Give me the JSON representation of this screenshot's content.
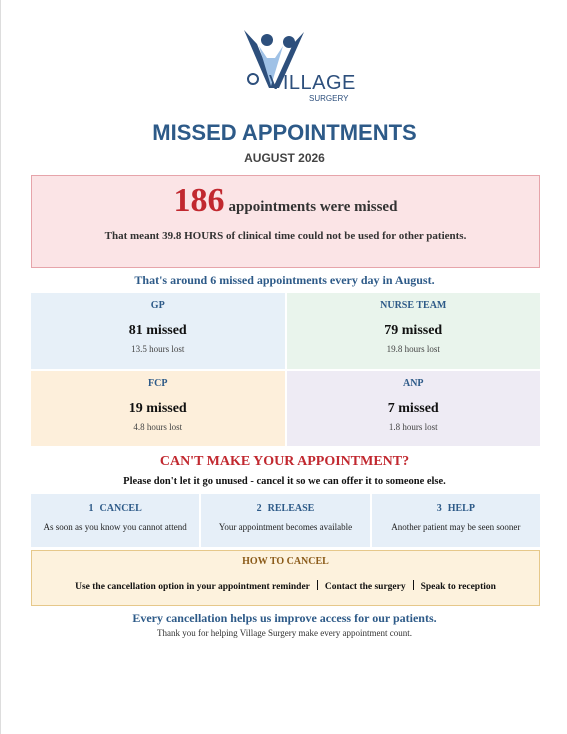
{
  "logo": {
    "name": "VILLAGE",
    "sub": "SURGERY"
  },
  "header": {
    "title": "MISSED APPOINTMENTS",
    "subtitle": "AUGUST 2026"
  },
  "summary": {
    "number": "186",
    "text": "appointments were missed",
    "detail": "That meant 39.8 HOURS of clinical time could not be used for other patients."
  },
  "daily": "That's around 6 missed appointments every day in August.",
  "teams": [
    {
      "name": "GP",
      "missed": "81 missed",
      "hours": "13.5 hours lost"
    },
    {
      "name": "NURSE TEAM",
      "missed": "79 missed",
      "hours": "19.8 hours lost"
    },
    {
      "name": "FCP",
      "missed": "19 missed",
      "hours": "4.8 hours lost"
    },
    {
      "name": "ANP",
      "missed": "7 missed",
      "hours": "1.8 hours lost"
    }
  ],
  "cta": {
    "title": "CAN'T MAKE YOUR APPOINTMENT?",
    "subtitle": "Please don't let it go unused - cancel it so we can offer it to someone else."
  },
  "steps": [
    {
      "number": "1",
      "title": "CANCEL",
      "text": "As soon as you know you cannot attend"
    },
    {
      "number": "2",
      "title": "RELEASE",
      "text": "Your appointment becomes available"
    },
    {
      "number": "3",
      "title": "HELP",
      "text": "Another patient may be seen sooner"
    }
  ],
  "how_to_cancel": {
    "title": "HOW TO CANCEL",
    "options": [
      "Use the cancellation option in your appointment reminder",
      "Contact the surgery",
      "Speak to reception"
    ]
  },
  "footer": {
    "headline": "Every cancellation helps us improve access for our patients.",
    "note": "Thank you for helping Village Surgery make every appointment count."
  }
}
